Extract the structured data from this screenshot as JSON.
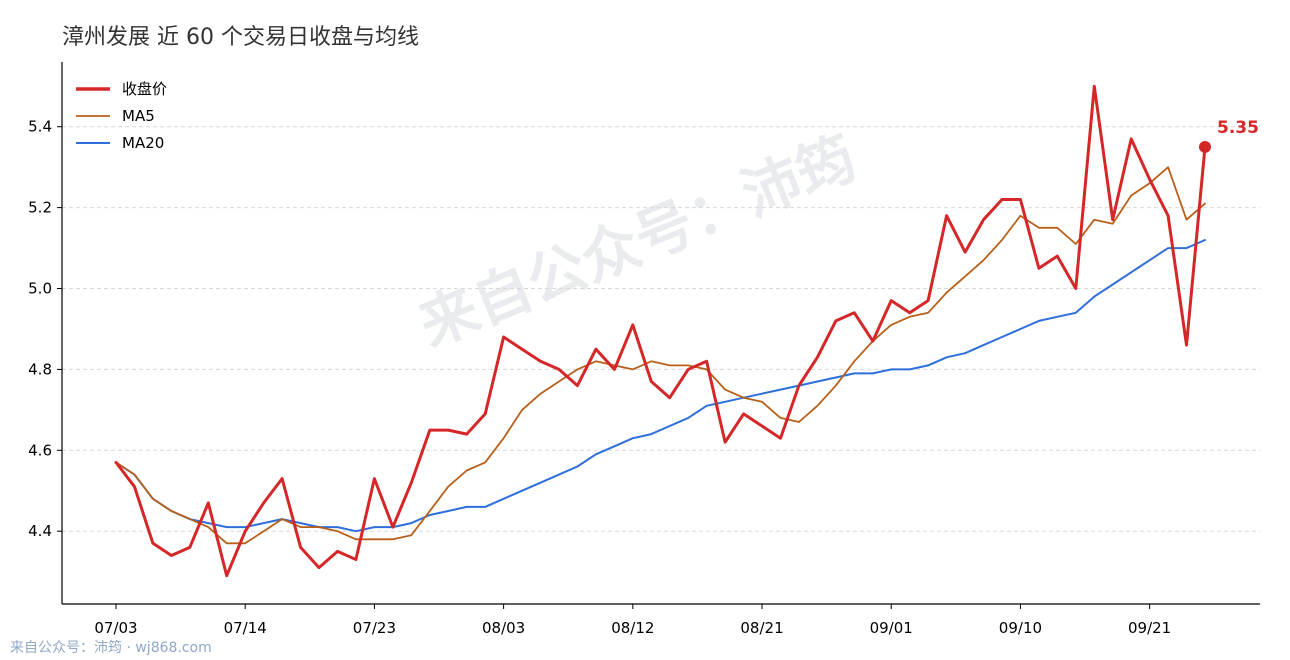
{
  "chart_data": {
    "type": "line",
    "title": "漳州发展 近 60 个交易日收盘与均线",
    "xlabel": "",
    "ylabel": "",
    "ylim": [
      4.22,
      5.56
    ],
    "yticks": [
      4.4,
      4.6,
      4.8,
      5.0,
      5.2,
      5.4
    ],
    "ytick_labels": [
      "4.4",
      "4.6",
      "4.8",
      "5.0",
      "5.2",
      "5.4"
    ],
    "xtick_labels": [
      "07/03",
      "07/14",
      "07/23",
      "08/03",
      "08/12",
      "08/21",
      "09/01",
      "09/10",
      "09/21"
    ],
    "xtick_index": [
      0,
      7,
      14,
      21,
      28,
      35,
      42,
      49,
      56
    ],
    "grid": "horizontal dashed",
    "legend_position": "top-left",
    "x": [
      "07/03",
      "07/04",
      "07/07",
      "07/08",
      "07/09",
      "07/10",
      "07/11",
      "07/14",
      "07/15",
      "07/16",
      "07/17",
      "07/18",
      "07/21",
      "07/22",
      "07/23",
      "07/24",
      "07/25",
      "07/28",
      "07/29",
      "07/30",
      "07/31",
      "08/03",
      "08/04",
      "08/05",
      "08/06",
      "08/07",
      "08/08",
      "08/11",
      "08/12",
      "08/13",
      "08/14",
      "08/15",
      "08/18",
      "08/19",
      "08/20",
      "08/21",
      "08/22",
      "08/25",
      "08/26",
      "08/27",
      "08/28",
      "08/29",
      "09/01",
      "09/02",
      "09/03",
      "09/04",
      "09/05",
      "09/08",
      "09/09",
      "09/10",
      "09/11",
      "09/12",
      "09/15",
      "09/16",
      "09/17",
      "09/18",
      "09/19",
      "09/22",
      "09/23",
      "09/24"
    ],
    "series": [
      {
        "name": "收盘价",
        "color": "#d62728",
        "values": [
          4.57,
          4.51,
          4.37,
          4.34,
          4.36,
          4.47,
          4.29,
          4.4,
          4.47,
          4.53,
          4.36,
          4.31,
          4.35,
          4.33,
          4.53,
          4.41,
          4.52,
          4.65,
          4.65,
          4.64,
          4.69,
          4.88,
          4.85,
          4.82,
          4.8,
          4.76,
          4.85,
          4.8,
          4.91,
          4.77,
          4.73,
          4.8,
          4.82,
          4.62,
          4.69,
          4.66,
          4.63,
          4.76,
          4.83,
          4.92,
          4.94,
          4.87,
          4.97,
          4.94,
          4.97,
          5.18,
          5.09,
          5.17,
          5.22,
          5.22,
          5.05,
          5.08,
          5.0,
          5.5,
          5.17,
          5.37,
          5.27,
          5.18,
          4.86,
          5.35
        ]
      },
      {
        "name": "MA5",
        "color": "#b8601a",
        "values": [
          4.57,
          4.54,
          4.48,
          4.45,
          4.43,
          4.41,
          4.37,
          4.37,
          4.4,
          4.43,
          4.41,
          4.41,
          4.4,
          4.38,
          4.38,
          4.38,
          4.39,
          4.45,
          4.51,
          4.55,
          4.57,
          4.63,
          4.7,
          4.74,
          4.77,
          4.8,
          4.82,
          4.81,
          4.8,
          4.82,
          4.81,
          4.81,
          4.8,
          4.75,
          4.73,
          4.72,
          4.68,
          4.67,
          4.71,
          4.76,
          4.82,
          4.87,
          4.91,
          4.93,
          4.94,
          4.99,
          5.03,
          5.07,
          5.12,
          5.18,
          5.15,
          5.15,
          5.11,
          5.17,
          5.16,
          5.23,
          5.26,
          5.3,
          5.17,
          5.21
        ]
      },
      {
        "name": "MA20",
        "color": "#2f6fdb",
        "values": [
          4.57,
          4.54,
          4.48,
          4.45,
          4.43,
          4.42,
          4.41,
          4.41,
          4.42,
          4.43,
          4.42,
          4.41,
          4.41,
          4.4,
          4.41,
          4.41,
          4.42,
          4.44,
          4.45,
          4.46,
          4.46,
          4.48,
          4.5,
          4.52,
          4.54,
          4.56,
          4.59,
          4.61,
          4.63,
          4.64,
          4.66,
          4.68,
          4.71,
          4.72,
          4.73,
          4.74,
          4.75,
          4.76,
          4.77,
          4.78,
          4.79,
          4.79,
          4.8,
          4.8,
          4.81,
          4.83,
          4.84,
          4.86,
          4.88,
          4.9,
          4.92,
          4.93,
          4.94,
          4.98,
          5.01,
          5.04,
          5.07,
          5.1,
          5.1,
          5.12
        ]
      }
    ],
    "last_point_label": "5.35"
  },
  "watermark": "来自公众号：沛筠",
  "footer": "来自公众号：沛筠 · wj868.com"
}
